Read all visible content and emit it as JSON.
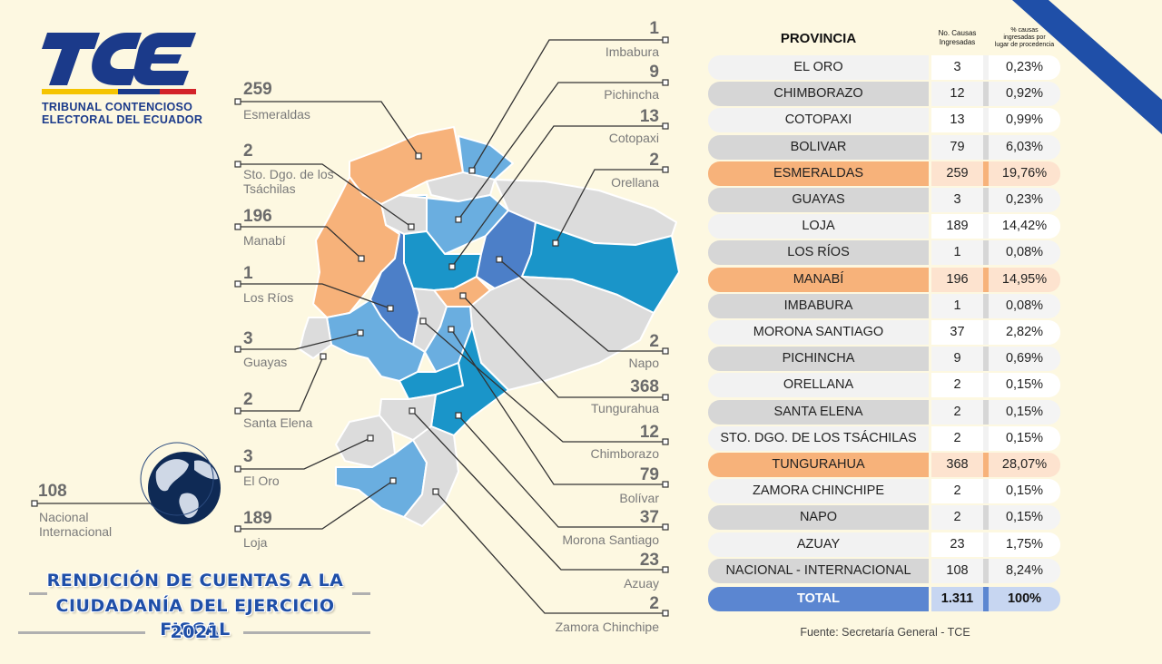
{
  "logo": {
    "letters": "TCE",
    "line1": "TRIBUNAL CONTENCIOSO",
    "line2": "ELECTORAL DEL ECUADOR",
    "colors": {
      "blue": "#1b3a8a",
      "yellow": "#f5c400",
      "red": "#d3232a"
    }
  },
  "map_labels": [
    {
      "value": "1",
      "name": "Imbabura"
    },
    {
      "value": "9",
      "name": "Pichincha"
    },
    {
      "value": "13",
      "name": "Cotopaxi"
    },
    {
      "value": "2",
      "name": "Orellana"
    },
    {
      "value": "2",
      "name": "Napo"
    },
    {
      "value": "368",
      "name": "Tungurahua"
    },
    {
      "value": "12",
      "name": "Chimborazo"
    },
    {
      "value": "79",
      "name": "Bolívar"
    },
    {
      "value": "37",
      "name": "Morona Santiago"
    },
    {
      "value": "23",
      "name": "Azuay"
    },
    {
      "value": "2",
      "name": "Zamora Chinchipe"
    },
    {
      "value": "259",
      "name": "Esmeraldas"
    },
    {
      "value": "2",
      "name": "Sto. Dgo. de los Tsáchilas"
    },
    {
      "value": "196",
      "name": "Manabí"
    },
    {
      "value": "1",
      "name": "Los Ríos"
    },
    {
      "value": "3",
      "name": "Guayas"
    },
    {
      "value": "2",
      "name": "Santa Elena"
    },
    {
      "value": "3",
      "name": "El Oro"
    },
    {
      "value": "189",
      "name": "Loja"
    },
    {
      "value": "108",
      "name": "Nacional Internacional"
    }
  ],
  "title": {
    "line1": "RENDICIÓN DE CUENTAS A LA",
    "line2": "CIUDADANÍA DEL EJERCICIO FISCAL",
    "line3": "2021"
  },
  "table": {
    "headers": {
      "provincia": "PROVINCIA",
      "causas_l1": "No. Causas",
      "causas_l2": "Ingresadas",
      "pct_l1": "% causas",
      "pct_l2": "ingresadas por",
      "pct_l3": "lugar de procedencia"
    },
    "rows": [
      {
        "provincia": "EL ORO",
        "causas": "3",
        "pct": "0,23%",
        "hl": false
      },
      {
        "provincia": "CHIMBORAZO",
        "causas": "12",
        "pct": "0,92%",
        "hl": false
      },
      {
        "provincia": "COTOPAXI",
        "causas": "13",
        "pct": "0,99%",
        "hl": false
      },
      {
        "provincia": "BOLIVAR",
        "causas": "79",
        "pct": "6,03%",
        "hl": false
      },
      {
        "provincia": "ESMERALDAS",
        "causas": "259",
        "pct": "19,76%",
        "hl": true
      },
      {
        "provincia": "GUAYAS",
        "causas": "3",
        "pct": "0,23%",
        "hl": false
      },
      {
        "provincia": "LOJA",
        "causas": "189",
        "pct": "14,42%",
        "hl": false
      },
      {
        "provincia": "LOS RÍOS",
        "causas": "1",
        "pct": "0,08%",
        "hl": false
      },
      {
        "provincia": "MANABÍ",
        "causas": "196",
        "pct": "14,95%",
        "hl": true
      },
      {
        "provincia": "IMBABURA",
        "causas": "1",
        "pct": "0,08%",
        "hl": false
      },
      {
        "provincia": "MORONA SANTIAGO",
        "causas": "37",
        "pct": "2,82%",
        "hl": false
      },
      {
        "provincia": "PICHINCHA",
        "causas": "9",
        "pct": "0,69%",
        "hl": false
      },
      {
        "provincia": "ORELLANA",
        "causas": "2",
        "pct": "0,15%",
        "hl": false
      },
      {
        "provincia": "SANTA ELENA",
        "causas": "2",
        "pct": "0,15%",
        "hl": false
      },
      {
        "provincia": "STO. DGO. DE LOS TSÁCHILAS",
        "causas": "2",
        "pct": "0,15%",
        "hl": false
      },
      {
        "provincia": "TUNGURAHUA",
        "causas": "368",
        "pct": "28,07%",
        "hl": true
      },
      {
        "provincia": "ZAMORA CHINCHIPE",
        "causas": "2",
        "pct": "0,15%",
        "hl": false
      },
      {
        "provincia": "NAPO",
        "causas": "2",
        "pct": "0,15%",
        "hl": false
      },
      {
        "provincia": "AZUAY",
        "causas": "23",
        "pct": "1,75%",
        "hl": false
      },
      {
        "provincia": "NACIONAL - INTERNACIONAL",
        "causas": "108",
        "pct": "8,24%",
        "hl": false
      }
    ],
    "total": {
      "label": "TOTAL",
      "causas": "1.311",
      "pct": "100%"
    }
  },
  "source": "Fuente: Secretaría General - TCE",
  "colors": {
    "background": "#fdf8e1",
    "orange": "#f7b27a",
    "light_blue": "#6aaee0",
    "mid_blue": "#1a95c9",
    "dark_blue": "#4c7fc8",
    "gray": "#dcdcdc",
    "total_blue": "#5b86d1"
  }
}
